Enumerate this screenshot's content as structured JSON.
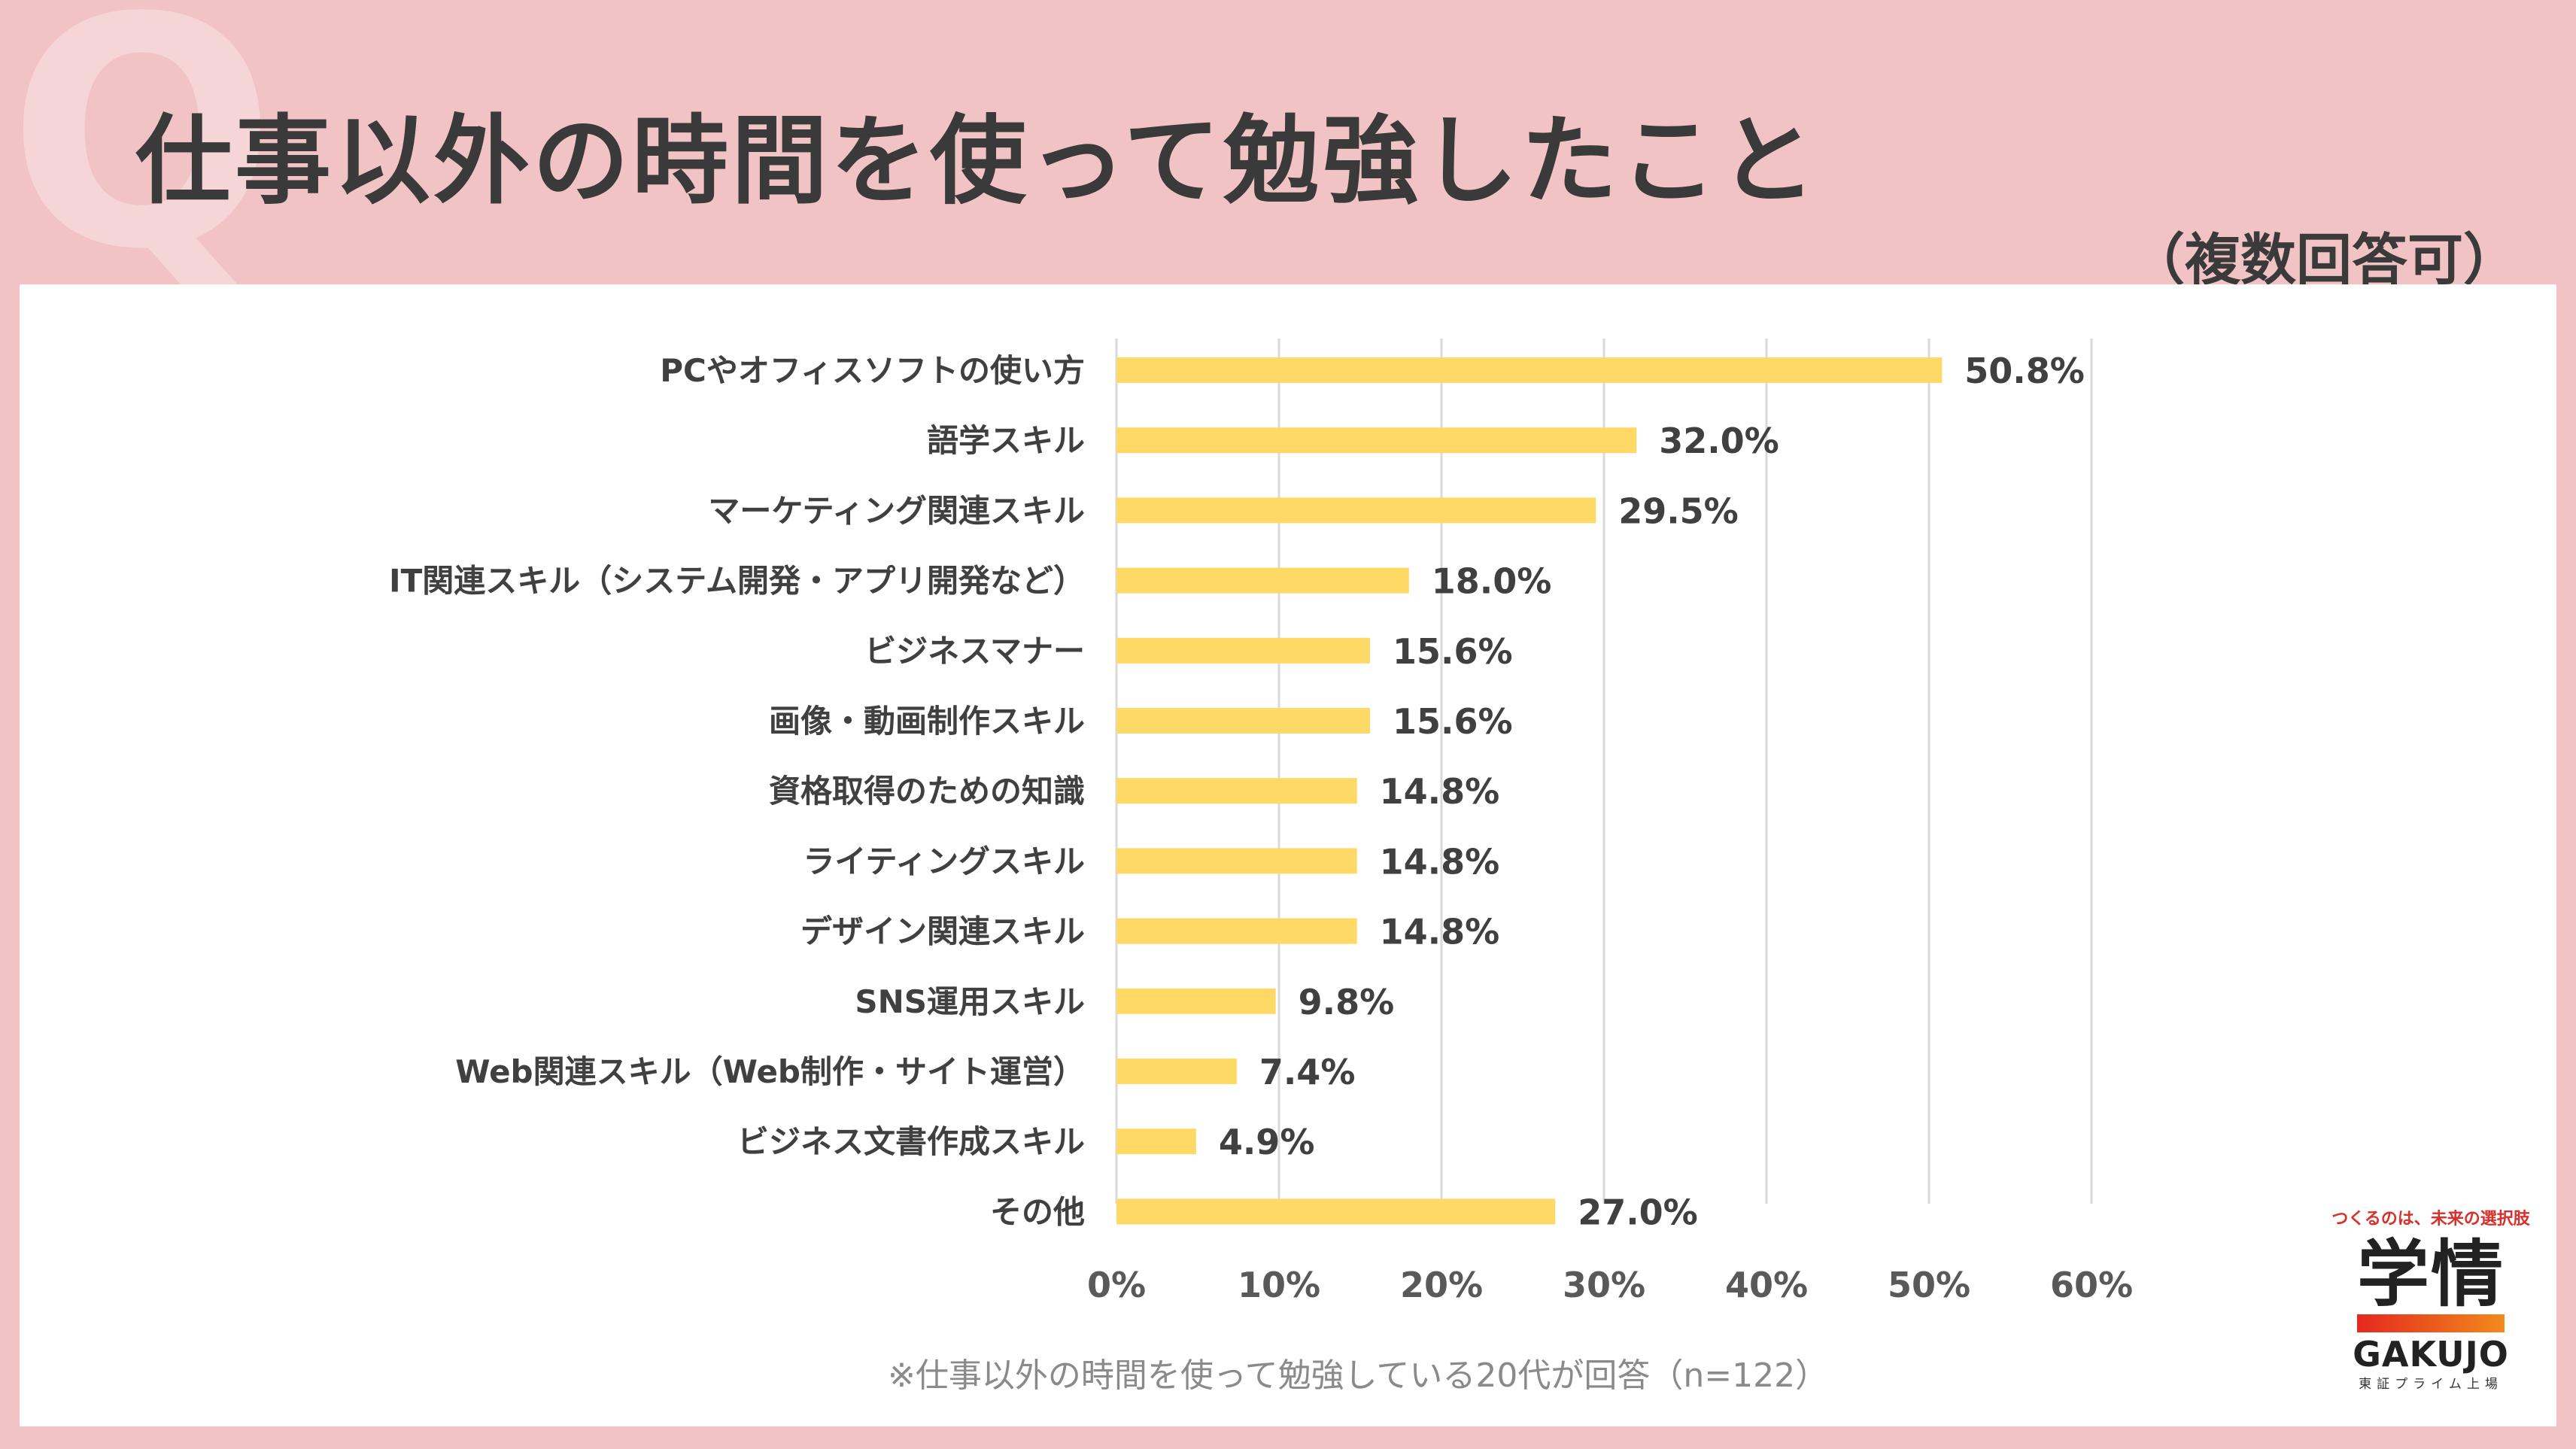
{
  "header": {
    "q_mark": "Q",
    "title": "仕事以外の時間を使って勉強したこと",
    "subtitle": "（複数回答可）"
  },
  "footer": {
    "note": "※仕事以外の時間を使って勉強している20代が回答（n=122）"
  },
  "logo": {
    "tagline": "つくるのは、未来の選択肢",
    "kanji": "学情",
    "latin": "GAKUJO",
    "market": "東証プライム上場",
    "bar_colors": [
      "#e5281e",
      "#f28a1c"
    ]
  },
  "colors": {
    "bar": "#ffd966",
    "grid": "#d9d9d9",
    "background": "#f2c3c4"
  },
  "chart_data": {
    "type": "bar",
    "orientation": "horizontal",
    "title": "仕事以外の時間を使って勉強したこと",
    "categories": [
      "PCやオフィスソフトの使い方",
      "語学スキル",
      "マーケティング関連スキル",
      "IT関連スキル（システム開発・アプリ開発など）",
      "ビジネスマナー",
      "画像・動画制作スキル",
      "資格取得のための知識",
      "ライティングスキル",
      "デザイン関連スキル",
      "SNS運用スキル",
      "Web関連スキル（Web制作・サイト運営）",
      "ビジネス文書作成スキル",
      "その他"
    ],
    "values": [
      50.8,
      32.0,
      29.5,
      18.0,
      15.6,
      15.6,
      14.8,
      14.8,
      14.8,
      9.8,
      7.4,
      4.9,
      27.0
    ],
    "value_labels": [
      "50.8%",
      "32.0%",
      "29.5%",
      "18.0%",
      "15.6%",
      "15.6%",
      "14.8%",
      "14.8%",
      "14.8%",
      "9.8%",
      "7.4%",
      "4.9%",
      "27.0%"
    ],
    "xlim": [
      0,
      60
    ],
    "xticks": [
      0,
      10,
      20,
      30,
      40,
      50,
      60
    ],
    "xtick_labels": [
      "0%",
      "10%",
      "20%",
      "30%",
      "40%",
      "50%",
      "60%"
    ],
    "grid": true,
    "legend": "none",
    "unit": "%"
  }
}
